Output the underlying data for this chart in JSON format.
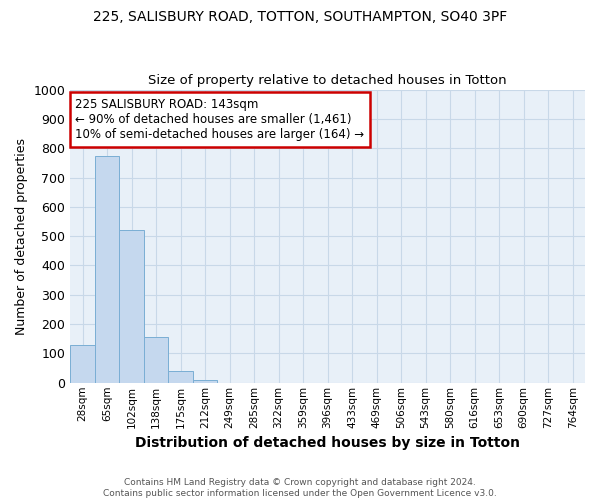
{
  "title": "225, SALISBURY ROAD, TOTTON, SOUTHAMPTON, SO40 3PF",
  "subtitle": "Size of property relative to detached houses in Totton",
  "xlabel": "Distribution of detached houses by size in Totton",
  "ylabel": "Number of detached properties",
  "categories": [
    "28sqm",
    "65sqm",
    "102sqm",
    "138sqm",
    "175sqm",
    "212sqm",
    "249sqm",
    "285sqm",
    "322sqm",
    "359sqm",
    "396sqm",
    "433sqm",
    "469sqm",
    "506sqm",
    "543sqm",
    "580sqm",
    "616sqm",
    "653sqm",
    "690sqm",
    "727sqm",
    "764sqm"
  ],
  "values": [
    130,
    775,
    520,
    155,
    40,
    10,
    0,
    0,
    0,
    0,
    0,
    0,
    0,
    0,
    0,
    0,
    0,
    0,
    0,
    0,
    0
  ],
  "bar_color": "#c5d8ee",
  "bar_edge_color": "#7aaed4",
  "ylim": [
    0,
    1000
  ],
  "property_line_color": "#cc0000",
  "annotation_text": "225 SALISBURY ROAD: 143sqm\n← 90% of detached houses are smaller (1,461)\n10% of semi-detached houses are larger (164) →",
  "annotation_box_color": "#ffffff",
  "annotation_box_edge_color": "#cc0000",
  "footer": "Contains HM Land Registry data © Crown copyright and database right 2024.\nContains public sector information licensed under the Open Government Licence v3.0.",
  "background_color": "#ffffff",
  "plot_bg_color": "#e8f0f8",
  "grid_color": "#c8d8e8",
  "title_fontsize": 10,
  "subtitle_fontsize": 9.5,
  "tick_fontsize": 7.5,
  "ylabel_fontsize": 9,
  "xlabel_fontsize": 10
}
